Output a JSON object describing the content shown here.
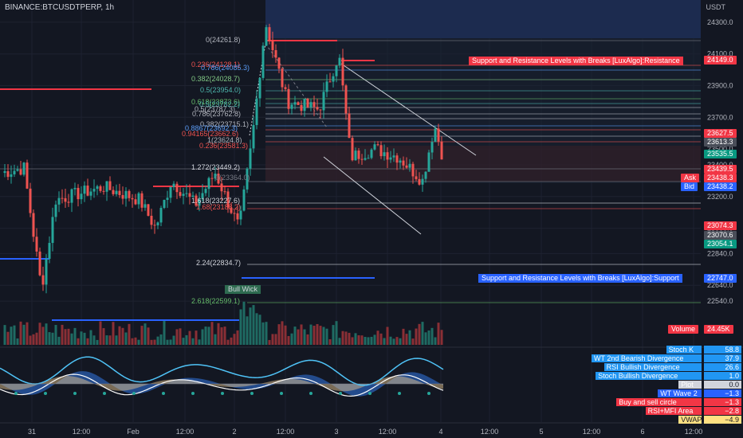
{
  "header": {
    "symbol": "BINANCE:BTCUSDTPERP, 1h",
    "currency": "USDT"
  },
  "colors": {
    "bg": "#131722",
    "up": "#26a69a",
    "down": "#ef5350",
    "grid": "#1e2230",
    "resistance": "#f23645",
    "support": "#2962ff",
    "highlight": "#1c2b4f"
  },
  "chart_data": {
    "type": "candlestick",
    "title": "BINANCE:BTCUSDTPERP, 1h",
    "ylabel": "USDT",
    "ylim": [
      22440,
      24400
    ],
    "y_ticks": [
      24300,
      24100,
      23900,
      23700,
      23500,
      23400,
      23200,
      23000,
      22840,
      22640,
      22540
    ],
    "x_ticks": [
      "31",
      "12:00",
      "Feb",
      "12:00",
      "2",
      "12:00",
      "3",
      "12:00",
      "4",
      "12:00",
      "5",
      "12:00",
      "6",
      "12:00"
    ],
    "price_tags": [
      {
        "label": "24300.0",
        "kind": "axis"
      },
      {
        "label": "24149.0",
        "kind": "red"
      },
      {
        "label": "23627.5",
        "kind": "red"
      },
      {
        "label": "23613.3",
        "kind": "gray"
      },
      {
        "label": "23535.5",
        "kind": "teal"
      },
      {
        "label": "23439.5",
        "kind": "red"
      },
      {
        "label": "23438.3",
        "kind": "red",
        "prefix": "Ask"
      },
      {
        "label": "23438.2",
        "kind": "blue",
        "prefix": "Bid"
      },
      {
        "label": "23074.3",
        "kind": "red"
      },
      {
        "label": "23070.6",
        "kind": "gray"
      },
      {
        "label": "23054.1",
        "kind": "teal"
      },
      {
        "label": "22747.0",
        "kind": "blue"
      }
    ],
    "fib_labels": [
      {
        "text": "0(24261.8)",
        "color": "#b2b5be"
      },
      {
        "text": "0.236(24128.1)",
        "color": "#ef5350"
      },
      {
        "text": "0.786(24085.3)",
        "color": "#5b9cf6"
      },
      {
        "text": "0.382(24028.7)",
        "color": "#81c784"
      },
      {
        "text": "0.5(23954.0)",
        "color": "#4db6ac"
      },
      {
        "text": "0.618(23873.6)",
        "color": "#66bb6a"
      },
      {
        "text": "0.5(23782.2)",
        "color": "#4db6ac"
      },
      {
        "text": "0.5(23787.3)",
        "color": "#b2b5be"
      },
      {
        "text": "0.786(23762.8)",
        "color": "#b2b5be"
      },
      {
        "text": "0.382(23715.1)",
        "color": "#b2b5be"
      },
      {
        "text": "0.8867(23692.3)",
        "color": "#5b9cf6"
      },
      {
        "text": "0.94165(23662.6)",
        "color": "#ef5350"
      },
      {
        "text": "1(23624.8)",
        "color": "#b2b5be"
      },
      {
        "text": "0.236(23581.3)",
        "color": "#ef5350"
      },
      {
        "text": "1.272(23449.2)",
        "color": "#d1d4dc"
      },
      {
        "text": "0(23364.0)",
        "color": "#787b86"
      },
      {
        "text": "1.618(23227.6)",
        "color": "#d1d4dc"
      },
      {
        "text": "1.68(23188.2)",
        "color": "#ef5350"
      },
      {
        "text": "2.24(22834.7)",
        "color": "#d1d4dc"
      },
      {
        "text": "2.618(22599.1)",
        "color": "#66bb6a"
      }
    ],
    "level_labels": [
      {
        "text": "Support and Resistance Levels with Breaks [LuxAlgo]:Resistance",
        "color": "#f23645"
      },
      {
        "text": "Support and Resistance Levels with Breaks [LuxAlgo]:Support",
        "color": "#2962ff"
      }
    ],
    "annotations": [
      "Bull Wick"
    ],
    "volume": {
      "label": "Volume",
      "value": "24.45K"
    },
    "indicators": [
      {
        "name": "Stoch K",
        "value": "58.8",
        "color": "#2196f3"
      },
      {
        "name": "WT 2nd Bearish Divergence",
        "value": "37.9",
        "color": "#2196f3"
      },
      {
        "name": "RSI Bullish Divergence",
        "value": "26.6",
        "color": "#2196f3"
      },
      {
        "name": "Stoch Bullish Divergence",
        "value": "1.0",
        "color": "#2196f3"
      },
      {
        "name": "Plot",
        "value": "0.0",
        "color": "#d1d4dc"
      },
      {
        "name": "WT Wave 2",
        "value": "−1.3",
        "color": "#2962ff"
      },
      {
        "name": "Buy and sell circle",
        "value": "−1.3",
        "color": "#f23645"
      },
      {
        "name": "RSI+MFI Area",
        "value": "−2.8",
        "color": "#f23645"
      },
      {
        "name": "VWAP",
        "value": "−4.9",
        "color": "#ffe082"
      }
    ]
  }
}
